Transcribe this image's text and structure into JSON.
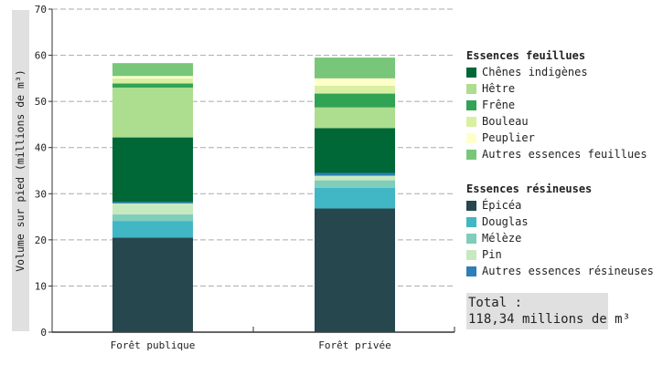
{
  "chart_data": {
    "type": "bar",
    "stacked": true,
    "categories": [
      "Forêt publique",
      "Forêt privée"
    ],
    "ylabel": "Volume sur pied (millions de m³)",
    "ylim": [
      0,
      70
    ],
    "yticks": [
      0,
      10,
      20,
      30,
      40,
      50,
      60,
      70
    ],
    "grid": true,
    "legend_position": "right",
    "legend_groups": [
      {
        "title": "Essences feuillues",
        "series": [
          "Chênes indigènes",
          "Hêtre",
          "Frêne",
          "Bouleau",
          "Peuplier",
          "Autres essences feuillues"
        ]
      },
      {
        "title": "Essences résineuses",
        "series": [
          "Épicéa",
          "Douglas",
          "Mélèze",
          "Pin",
          "Autres essences résineuses"
        ]
      }
    ],
    "series": [
      {
        "name": "Épicéa",
        "color": "#26474e",
        "values": [
          20.5,
          26.8
        ]
      },
      {
        "name": "Douglas",
        "color": "#41b6c4",
        "values": [
          3.6,
          4.5
        ]
      },
      {
        "name": "Mélèze",
        "color": "#7fcdbb",
        "values": [
          1.4,
          1.6
        ]
      },
      {
        "name": "Pin",
        "color": "#c7e9c0",
        "values": [
          2.4,
          1.0
        ]
      },
      {
        "name": "Autres essences résineuses",
        "color": "#2c7fb8",
        "values": [
          0.3,
          0.6
        ]
      },
      {
        "name": "Chênes indigènes",
        "color": "#006837",
        "values": [
          14.0,
          9.7
        ]
      },
      {
        "name": "Hêtre",
        "color": "#addd8e",
        "values": [
          10.8,
          4.5
        ]
      },
      {
        "name": "Frêne",
        "color": "#31a354",
        "values": [
          0.9,
          3.0
        ]
      },
      {
        "name": "Bouleau",
        "color": "#d9f0a3",
        "values": [
          1.1,
          1.7
        ]
      },
      {
        "name": "Peuplier",
        "color": "#ffffcc",
        "values": [
          0.5,
          1.6
        ]
      },
      {
        "name": "Autres essences feuillues",
        "color": "#78c679",
        "values": [
          2.8,
          4.5
        ]
      }
    ]
  },
  "total": {
    "label": "Total :",
    "value": "118,34 millions de m³"
  }
}
